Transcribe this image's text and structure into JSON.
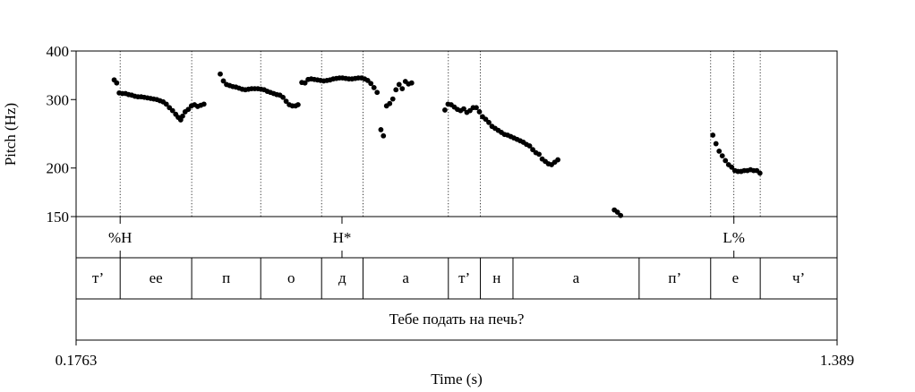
{
  "chart_data": {
    "type": "scatter",
    "title": "",
    "xlabel": "Time (s)",
    "ylabel": "Pitch (Hz)",
    "xlim": [
      0.1763,
      1.389
    ],
    "ylim": [
      150,
      400
    ],
    "yscale": "log",
    "xtick_labels": [
      "0.1763",
      "1.389"
    ],
    "ytick_labels": [
      "400",
      "300",
      "200",
      "150"
    ],
    "yticks": [
      400,
      300,
      200,
      150
    ],
    "marker_color": "#000000",
    "series": [
      {
        "name": "pitch",
        "points": [
          [
            0.237,
            337
          ],
          [
            0.241,
            331
          ],
          [
            0.245,
            312
          ],
          [
            0.25,
            311
          ],
          [
            0.255,
            311
          ],
          [
            0.26,
            309
          ],
          [
            0.265,
            308
          ],
          [
            0.27,
            306
          ],
          [
            0.275,
            305
          ],
          [
            0.28,
            305
          ],
          [
            0.285,
            304
          ],
          [
            0.29,
            303
          ],
          [
            0.295,
            302
          ],
          [
            0.3,
            301
          ],
          [
            0.305,
            300
          ],
          [
            0.31,
            298
          ],
          [
            0.315,
            296
          ],
          [
            0.32,
            292
          ],
          [
            0.325,
            286
          ],
          [
            0.33,
            281
          ],
          [
            0.335,
            275
          ],
          [
            0.339,
            270
          ],
          [
            0.343,
            266
          ],
          [
            0.346,
            272
          ],
          [
            0.35,
            279
          ],
          [
            0.355,
            283
          ],
          [
            0.36,
            289
          ],
          [
            0.365,
            291
          ],
          [
            0.37,
            288
          ],
          [
            0.375,
            290
          ],
          [
            0.38,
            292
          ],
          [
            0.406,
            349
          ],
          [
            0.411,
            335
          ],
          [
            0.416,
            328
          ],
          [
            0.421,
            326
          ],
          [
            0.426,
            324
          ],
          [
            0.431,
            323
          ],
          [
            0.436,
            321
          ],
          [
            0.441,
            319
          ],
          [
            0.446,
            318
          ],
          [
            0.451,
            319
          ],
          [
            0.456,
            320
          ],
          [
            0.461,
            320
          ],
          [
            0.466,
            320
          ],
          [
            0.471,
            319
          ],
          [
            0.476,
            318
          ],
          [
            0.481,
            315
          ],
          [
            0.486,
            313
          ],
          [
            0.491,
            311
          ],
          [
            0.496,
            309
          ],
          [
            0.501,
            308
          ],
          [
            0.506,
            304
          ],
          [
            0.511,
            297
          ],
          [
            0.516,
            291
          ],
          [
            0.521,
            289
          ],
          [
            0.526,
            289
          ],
          [
            0.53,
            291
          ],
          [
            0.536,
            332
          ],
          [
            0.541,
            331
          ],
          [
            0.546,
            338
          ],
          [
            0.551,
            339
          ],
          [
            0.556,
            338
          ],
          [
            0.561,
            337
          ],
          [
            0.566,
            336
          ],
          [
            0.571,
            335
          ],
          [
            0.576,
            336
          ],
          [
            0.581,
            337
          ],
          [
            0.586,
            339
          ],
          [
            0.591,
            340
          ],
          [
            0.596,
            341
          ],
          [
            0.601,
            341
          ],
          [
            0.606,
            340
          ],
          [
            0.611,
            339
          ],
          [
            0.616,
            339
          ],
          [
            0.621,
            340
          ],
          [
            0.626,
            341
          ],
          [
            0.631,
            341
          ],
          [
            0.636,
            339
          ],
          [
            0.641,
            336
          ],
          [
            0.646,
            330
          ],
          [
            0.651,
            322
          ],
          [
            0.656,
            313
          ],
          [
            0.662,
            251
          ],
          [
            0.666,
            242
          ],
          [
            0.671,
            289
          ],
          [
            0.676,
            293
          ],
          [
            0.681,
            301
          ],
          [
            0.686,
            318
          ],
          [
            0.691,
            328
          ],
          [
            0.696,
            320
          ],
          [
            0.701,
            334
          ],
          [
            0.706,
            329
          ],
          [
            0.711,
            331
          ],
          [
            0.764,
            282
          ],
          [
            0.769,
            292
          ],
          [
            0.774,
            291
          ],
          [
            0.779,
            287
          ],
          [
            0.784,
            283
          ],
          [
            0.789,
            281
          ],
          [
            0.794,
            284
          ],
          [
            0.799,
            278
          ],
          [
            0.804,
            281
          ],
          [
            0.809,
            286
          ],
          [
            0.814,
            286
          ],
          [
            0.819,
            279
          ],
          [
            0.824,
            271
          ],
          [
            0.829,
            267
          ],
          [
            0.834,
            262
          ],
          [
            0.839,
            256
          ],
          [
            0.844,
            253
          ],
          [
            0.849,
            250
          ],
          [
            0.854,
            247
          ],
          [
            0.859,
            244
          ],
          [
            0.864,
            243
          ],
          [
            0.869,
            241
          ],
          [
            0.874,
            239
          ],
          [
            0.879,
            237
          ],
          [
            0.884,
            235
          ],
          [
            0.889,
            233
          ],
          [
            0.894,
            230
          ],
          [
            0.899,
            228
          ],
          [
            0.904,
            223
          ],
          [
            0.909,
            219
          ],
          [
            0.914,
            217
          ],
          [
            0.919,
            211
          ],
          [
            0.924,
            208
          ],
          [
            0.929,
            205
          ],
          [
            0.934,
            204
          ],
          [
            0.939,
            207
          ],
          [
            0.944,
            210
          ],
          [
            1.034,
            156
          ],
          [
            1.039,
            154
          ],
          [
            1.044,
            151
          ],
          [
            1.191,
            243
          ],
          [
            1.196,
            231
          ],
          [
            1.201,
            221
          ],
          [
            1.206,
            215
          ],
          [
            1.211,
            209
          ],
          [
            1.216,
            204
          ],
          [
            1.221,
            201
          ],
          [
            1.226,
            197
          ],
          [
            1.231,
            196
          ],
          [
            1.236,
            196
          ],
          [
            1.241,
            197
          ],
          [
            1.246,
            197
          ],
          [
            1.251,
            198
          ],
          [
            1.256,
            197
          ],
          [
            1.261,
            197
          ],
          [
            1.266,
            194
          ]
        ]
      }
    ],
    "boundaries": [
      0.2465,
      0.3605,
      0.4705,
      0.5675,
      0.6335,
      0.7695,
      0.8205,
      1.1875,
      1.2245,
      1.2665
    ],
    "tones": [
      {
        "label": "%H",
        "time": 0.2465
      },
      {
        "label": "H*",
        "time": 0.6
      },
      {
        "label": "L%",
        "time": 1.2245
      }
    ],
    "phones": [
      {
        "label": "т’",
        "start": 0.1763,
        "end": 0.2465
      },
      {
        "label": "ее",
        "start": 0.2465,
        "end": 0.3605
      },
      {
        "label": "п",
        "start": 0.3605,
        "end": 0.4705
      },
      {
        "label": "о",
        "start": 0.4705,
        "end": 0.5675
      },
      {
        "label": "д",
        "start": 0.5675,
        "end": 0.6335
      },
      {
        "label": "а",
        "start": 0.6335,
        "end": 0.7695
      },
      {
        "label": "т’",
        "start": 0.7695,
        "end": 0.8205
      },
      {
        "label": "н",
        "start": 0.8205,
        "end": 0.8725
      },
      {
        "label": "а",
        "start": 0.8725,
        "end": 1.0735
      },
      {
        "label": "п’",
        "start": 1.0735,
        "end": 1.1875
      },
      {
        "label": "е",
        "start": 1.1875,
        "end": 1.2665
      },
      {
        "label": "ч’",
        "start": 1.2665,
        "end": 1.389
      }
    ],
    "phone_boundaries": [
      0.2465,
      0.3605,
      0.4705,
      0.5675,
      0.6335,
      0.7695,
      0.8205,
      0.8725,
      1.0735,
      1.1875,
      1.2665
    ],
    "sentence": "Тебе подать на печь?"
  }
}
